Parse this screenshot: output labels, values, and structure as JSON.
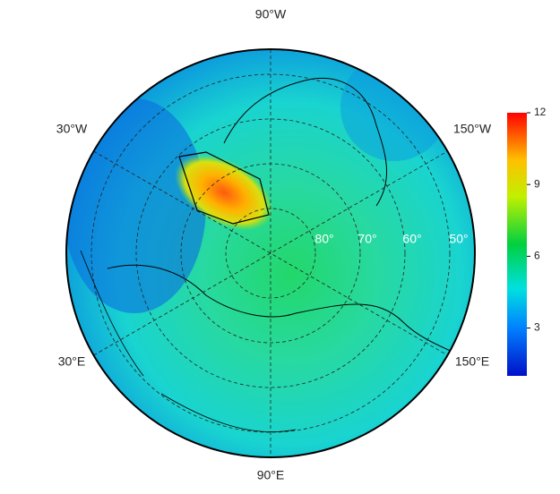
{
  "map": {
    "longitude_labels": [
      "90°W",
      "30°W",
      "150°W",
      "30°E",
      "150°E",
      "90°E"
    ],
    "latitude_labels": [
      "80°",
      "70°",
      "60°",
      "50°"
    ],
    "colorbar": {
      "range": [
        1,
        12
      ],
      "ticks": [
        3,
        6,
        9,
        12
      ]
    }
  }
}
